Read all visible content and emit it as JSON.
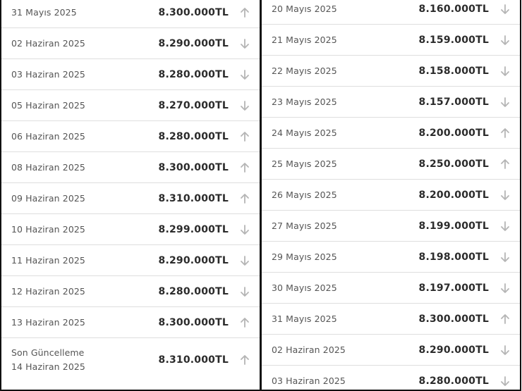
{
  "colors": {
    "text": "#2b2b2b",
    "muted": "#555555",
    "arrow": "#b5b5b5",
    "divider": "#dedede"
  },
  "left": {
    "rows": [
      {
        "date": "31 Mayıs 2025",
        "price": "8.300.000TL",
        "dir": "up"
      },
      {
        "date": "02 Haziran 2025",
        "price": "8.290.000TL",
        "dir": "down"
      },
      {
        "date": "03 Haziran 2025",
        "price": "8.280.000TL",
        "dir": "down"
      },
      {
        "date": "05 Haziran 2025",
        "price": "8.270.000TL",
        "dir": "down"
      },
      {
        "date": "06 Haziran 2025",
        "price": "8.280.000TL",
        "dir": "up"
      },
      {
        "date": "08 Haziran 2025",
        "price": "8.300.000TL",
        "dir": "up"
      },
      {
        "date": "09 Haziran 2025",
        "price": "8.310.000TL",
        "dir": "up"
      },
      {
        "date": "10 Haziran 2025",
        "price": "8.299.000TL",
        "dir": "down"
      },
      {
        "date": "11 Haziran 2025",
        "price": "8.290.000TL",
        "dir": "down"
      },
      {
        "date": "12 Haziran 2025",
        "price": "8.280.000TL",
        "dir": "down"
      },
      {
        "date": "13 Haziran 2025",
        "price": "8.300.000TL",
        "dir": "up"
      }
    ],
    "last": {
      "label": "Son Güncelleme",
      "date": "14 Haziran 2025",
      "price": "8.310.000TL",
      "dir": "up"
    }
  },
  "right": {
    "rows": [
      {
        "date": "20 Mayıs 2025",
        "price": "8.160.000TL",
        "dir": "down"
      },
      {
        "date": "21 Mayıs 2025",
        "price": "8.159.000TL",
        "dir": "down"
      },
      {
        "date": "22 Mayıs 2025",
        "price": "8.158.000TL",
        "dir": "down"
      },
      {
        "date": "23 Mayıs 2025",
        "price": "8.157.000TL",
        "dir": "down"
      },
      {
        "date": "24 Mayıs 2025",
        "price": "8.200.000TL",
        "dir": "up"
      },
      {
        "date": "25 Mayıs 2025",
        "price": "8.250.000TL",
        "dir": "up"
      },
      {
        "date": "26 Mayıs 2025",
        "price": "8.200.000TL",
        "dir": "down"
      },
      {
        "date": "27 Mayıs 2025",
        "price": "8.199.000TL",
        "dir": "down"
      },
      {
        "date": "29 Mayıs 2025",
        "price": "8.198.000TL",
        "dir": "down"
      },
      {
        "date": "30 Mayıs 2025",
        "price": "8.197.000TL",
        "dir": "down"
      },
      {
        "date": "31 Mayıs 2025",
        "price": "8.300.000TL",
        "dir": "up"
      },
      {
        "date": "02 Haziran 2025",
        "price": "8.290.000TL",
        "dir": "down"
      },
      {
        "date": "03 Haziran 2025",
        "price": "8.280.000TL",
        "dir": "down"
      }
    ]
  }
}
